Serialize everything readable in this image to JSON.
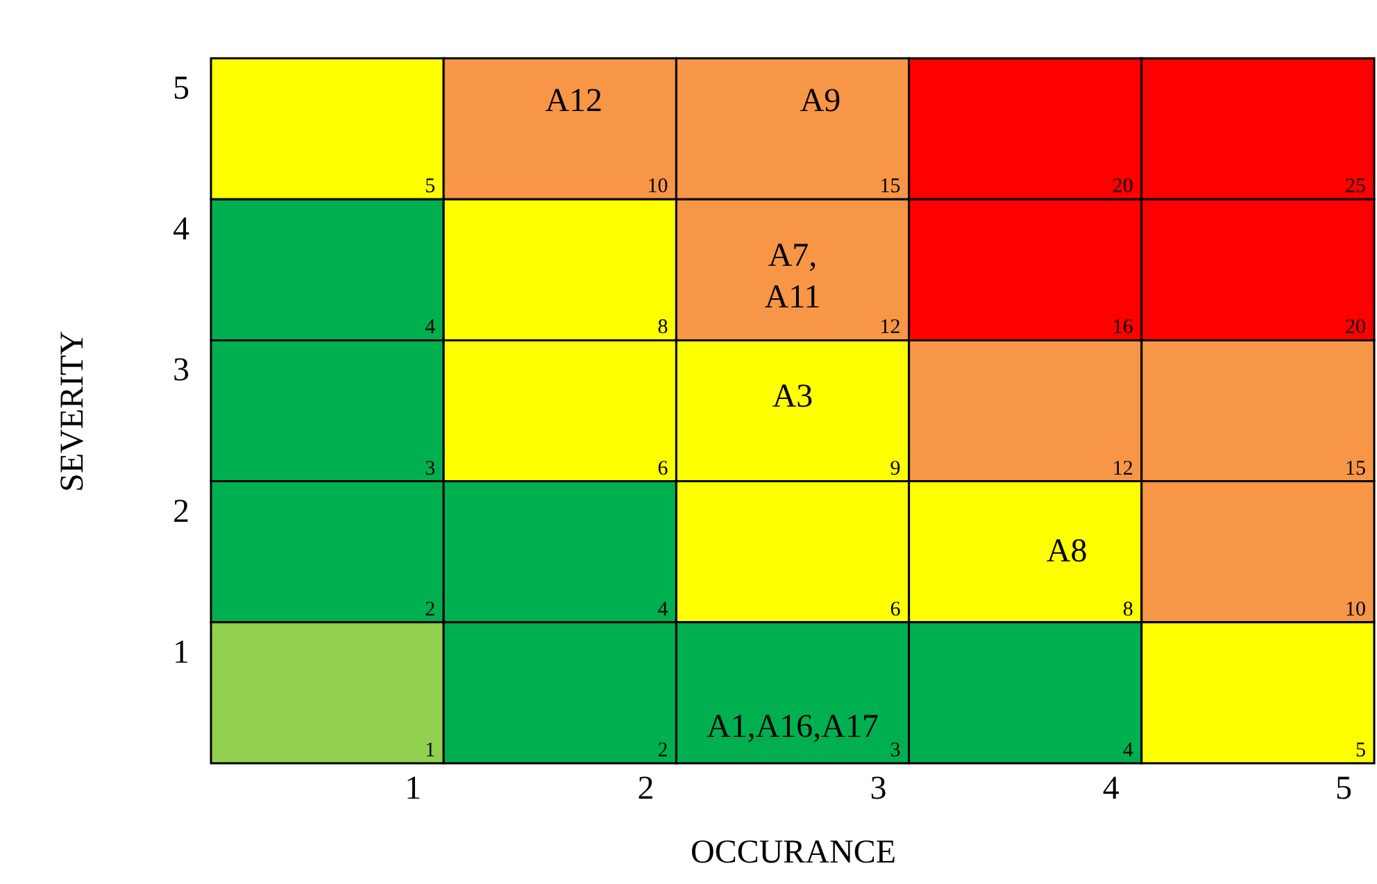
{
  "chart_data": {
    "type": "heatmap",
    "xlabel": "OCCURANCE",
    "ylabel": "SEVERITY",
    "data_labels": true,
    "categories": [
      "1",
      "2",
      "3",
      "4",
      "5"
    ],
    "y_categories": [
      "5",
      "4",
      "3",
      "2",
      "1"
    ],
    "cells": [
      [
        5,
        10,
        15,
        20,
        25
      ],
      [
        4,
        8,
        12,
        16,
        20
      ],
      [
        3,
        6,
        9,
        12,
        15
      ],
      [
        2,
        4,
        6,
        8,
        10
      ],
      [
        1,
        2,
        3,
        4,
        5
      ]
    ],
    "colors": [
      [
        "#ffff00",
        "#f79646",
        "#f79646",
        "#ff0000",
        "#ff0000"
      ],
      [
        "#00b050",
        "#ffff00",
        "#f79646",
        "#ff0000",
        "#ff0000"
      ],
      [
        "#00b050",
        "#ffff00",
        "#ffff00",
        "#f79646",
        "#f79646"
      ],
      [
        "#00b050",
        "#00b050",
        "#ffff00",
        "#ffff00",
        "#f79646"
      ],
      [
        "#92d050",
        "#00b050",
        "#00b050",
        "#00b050",
        "#ffff00"
      ]
    ],
    "annotations": [
      "A12",
      "A9",
      "A7,\nA11",
      "A3",
      "A8",
      "A1,A16,A17"
    ]
  }
}
